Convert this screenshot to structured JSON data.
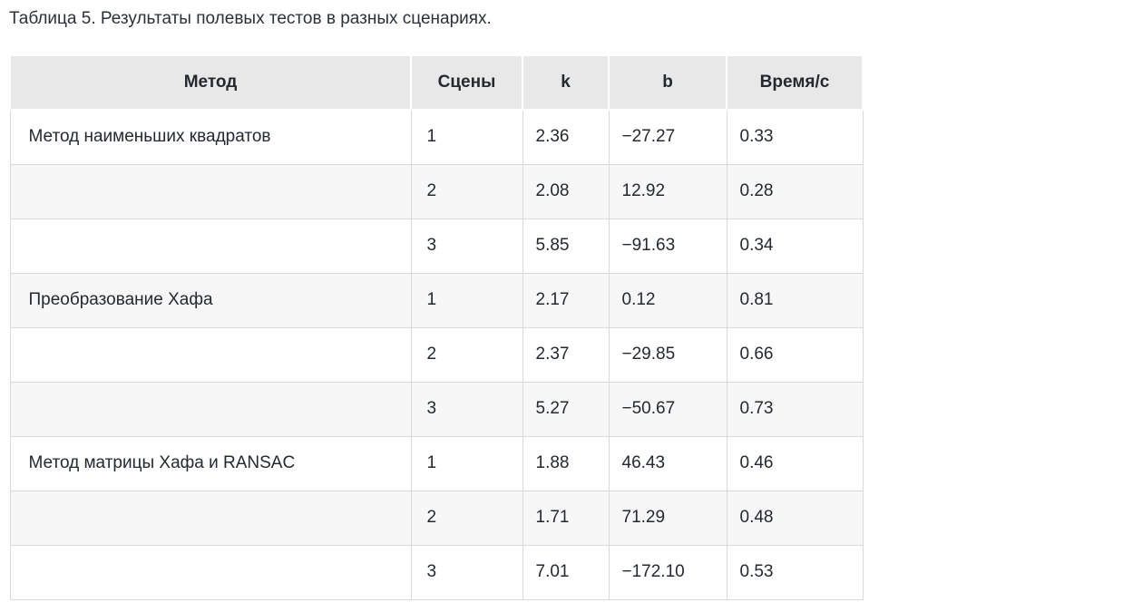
{
  "caption": "Таблица 5. Результаты полевых тестов в разных сценариях.",
  "table": {
    "headers": [
      "Метод",
      "Сцены",
      "k",
      "b",
      "Время/с"
    ],
    "rows": [
      [
        "Метод наименьших квадратов",
        "1",
        "2.36",
        "−27.27",
        "0.33"
      ],
      [
        "",
        "2",
        "2.08",
        "12.92",
        "0.28"
      ],
      [
        "",
        "3",
        "5.85",
        "−91.63",
        "0.34"
      ],
      [
        "Преобразование Хафа",
        "1",
        "2.17",
        "0.12",
        "0.81"
      ],
      [
        "",
        "2",
        "2.37",
        "−29.85",
        "0.66"
      ],
      [
        "",
        "3",
        "5.27",
        "−50.67",
        "0.73"
      ],
      [
        "Метод матрицы Хафа и RANSAC",
        "1",
        "1.88",
        "46.43",
        "0.46"
      ],
      [
        "",
        "2",
        "1.71",
        "71.29",
        "0.48"
      ],
      [
        "",
        "3",
        "7.01",
        "−172.10",
        "0.53"
      ]
    ]
  },
  "colors": {
    "header_bg": "#e8e8e8",
    "row_alt_bg": "#f7f7f8",
    "border": "#d9d9d9",
    "text": "#24292f"
  }
}
